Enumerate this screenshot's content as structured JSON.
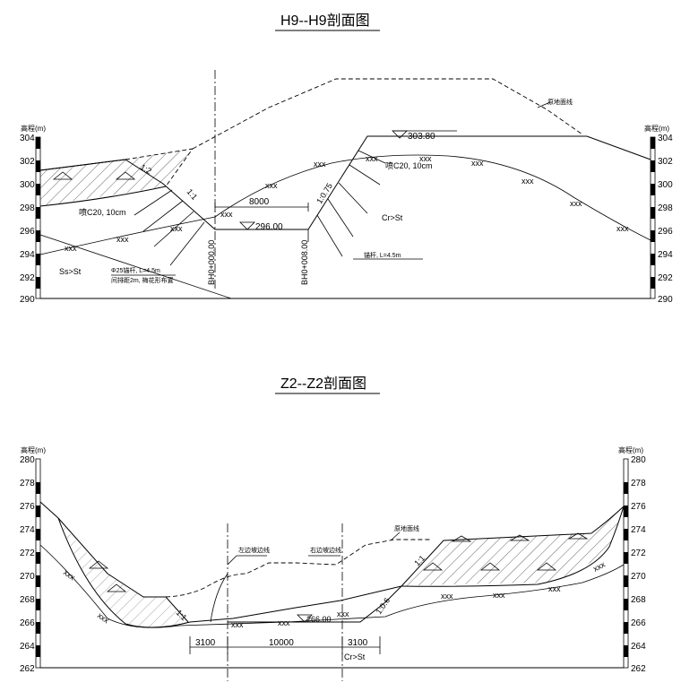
{
  "h9": {
    "title": "H9--H9剖面图",
    "elev_label": "高程(m)",
    "ticks": [
      "304",
      "302",
      "300",
      "298",
      "296",
      "294",
      "292",
      "290"
    ],
    "ground_label": "原地面线",
    "elev_top": "303.80",
    "elev_bottom": "296.00",
    "width": "8000",
    "slope_left_top": "1:2",
    "slope_left": "1:1",
    "slope_right": "1:0.75",
    "shotcrete_left": "喷C20, 10cm",
    "shotcrete_right": "喷C20, 10cm",
    "rock_right": "Cr>St",
    "rock_left": "Ss>St",
    "anchor_right": "锚杆, L=4.5m",
    "anchor_left_1": "Φ25锚杆, L=4.5m",
    "anchor_left_2": "间排距2m, 梅花形布置",
    "station_1": "BH0+000.00",
    "station_2": "BH0+008.00",
    "xxx": "xxx"
  },
  "z2": {
    "title": "Z2--Z2剖面图",
    "elev_label": "高程(m)",
    "ticks": [
      "280",
      "278",
      "276",
      "274",
      "272",
      "270",
      "268",
      "266",
      "264",
      "262"
    ],
    "ground_label": "原地面线",
    "left_line": "左边坡边线",
    "right_line": "右边坡边线",
    "elev_bottom": "266.00",
    "dim_left": "3100",
    "dim_mid": "10000",
    "dim_right": "3100",
    "slope_left": "1:1",
    "slope_right_1": "1:1",
    "slope_right_2": "1:0.6",
    "rock": "Cr>St",
    "xxx": "xxx"
  }
}
